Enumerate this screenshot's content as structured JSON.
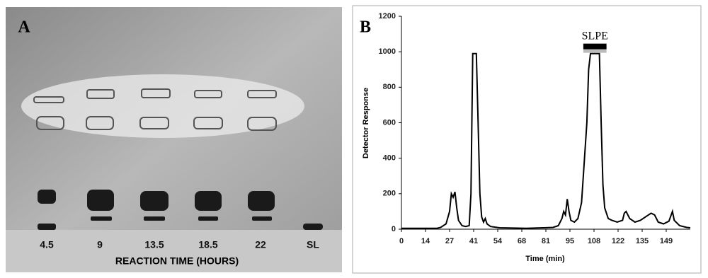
{
  "panel_a": {
    "label": "A",
    "lanes": [
      "4.5",
      "9",
      "13.5",
      "18.5",
      "22",
      "SL"
    ],
    "xlabel": "REACTION TIME (HOURS)"
  },
  "chart_data": {
    "type": "line",
    "label": "B",
    "ylabel": "Detector Response",
    "xlabel": "Time (min)",
    "color": "#000000",
    "x": [
      0,
      20,
      22,
      25,
      27,
      28,
      29,
      30,
      31,
      32,
      34,
      36,
      38,
      39,
      40,
      42,
      43,
      44,
      45,
      46,
      47,
      48,
      50,
      55,
      70,
      80,
      85,
      88,
      90,
      91,
      92,
      93,
      94,
      95,
      97,
      99,
      101,
      102,
      104,
      105,
      106,
      111,
      112,
      113,
      114,
      116,
      118,
      121,
      124,
      125,
      126,
      128,
      131,
      134,
      137,
      140,
      142,
      144,
      147,
      150,
      152,
      153,
      156,
      160,
      162
    ],
    "values": [
      5,
      5,
      10,
      30,
      100,
      200,
      180,
      210,
      120,
      50,
      20,
      15,
      20,
      200,
      990,
      990,
      600,
      200,
      70,
      40,
      60,
      30,
      15,
      8,
      5,
      8,
      10,
      20,
      60,
      100,
      80,
      170,
      100,
      50,
      40,
      60,
      150,
      300,
      600,
      900,
      990,
      990,
      600,
      250,
      120,
      60,
      50,
      40,
      50,
      90,
      100,
      60,
      40,
      50,
      70,
      90,
      80,
      40,
      30,
      45,
      100,
      50,
      20,
      10,
      8
    ],
    "xlim": [
      0,
      162
    ],
    "ylim": [
      0,
      1200
    ],
    "xticks": [
      0,
      {
        "value": 13.5,
        "label": "14"
      },
      27,
      {
        "value": 40.5,
        "label": "41"
      },
      54,
      {
        "value": 67.5,
        "label": "68"
      },
      81,
      {
        "value": 94.5,
        "label": "95"
      },
      108,
      {
        "value": 121.5,
        "label": "122"
      },
      135,
      {
        "value": 148.5,
        "label": "149"
      }
    ],
    "yticks": [
      0,
      200,
      400,
      600,
      800,
      1000,
      1200
    ],
    "annotation": {
      "text": "SLPE",
      "x_range": [
        102,
        115
      ],
      "y": 1030
    }
  }
}
